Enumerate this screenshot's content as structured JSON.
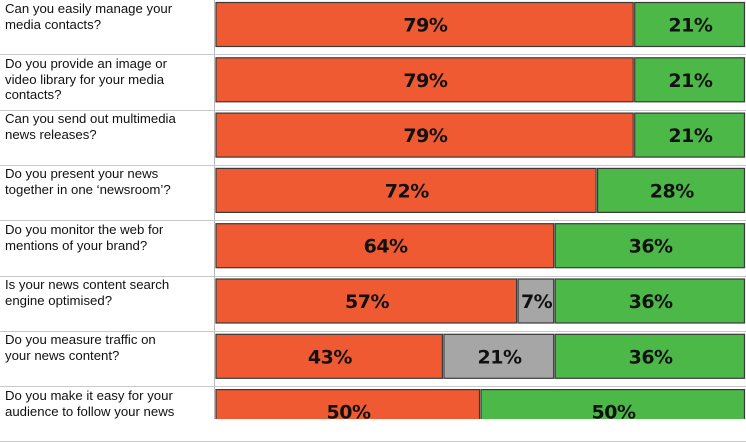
{
  "chart_data": {
    "type": "bar",
    "orientation": "horizontal",
    "stacked": true,
    "title": "",
    "xlabel": "",
    "ylabel": "",
    "xlim": [
      0,
      100
    ],
    "grid": true,
    "legend": "none",
    "categories": [
      "Can you easily manage your media contacts?",
      "Do you provide an image or video library for your media contacts?",
      "Can you send out multimedia news releases?",
      "Do you present your news together in one ‘newsroom’?",
      "Do you monitor the web for mentions of your brand?",
      "Is your news content search engine optimised?",
      "Do you measure traffic on your news content?",
      "Do you make it easy for your audience to follow your news"
    ],
    "label_lines": [
      [
        "Can you easily manage your",
        "media contacts?"
      ],
      [
        "Do you provide an image or",
        "video library for your media",
        "contacts?"
      ],
      [
        "Can you send out multimedia",
        "news releases?"
      ],
      [
        "Do you present your news",
        "together in one ‘newsroom’?"
      ],
      [
        "Do you monitor the web for",
        "mentions of your brand?"
      ],
      [
        "Is your news content search",
        "engine optimised?"
      ],
      [
        "Do you measure traffic on",
        "your news content?"
      ],
      [
        "Do you make it easy for your",
        "audience to follow your news"
      ]
    ],
    "series": [
      {
        "color": "#f05a32",
        "values": [
          79,
          79,
          79,
          72,
          64,
          57,
          43,
          50
        ],
        "labels": [
          "79%",
          "79%",
          "79%",
          "72%",
          "64%",
          "57%",
          "43%",
          "50%"
        ]
      },
      {
        "color": "#a6a6a6",
        "values": [
          0,
          0,
          0,
          0,
          0,
          7,
          21,
          0
        ],
        "labels": [
          "",
          "",
          "",
          "",
          "",
          "7%",
          "21%",
          ""
        ]
      },
      {
        "color": "#4cb848",
        "values": [
          21,
          21,
          21,
          28,
          36,
          36,
          36,
          50
        ],
        "labels": [
          "21%",
          "21%",
          "21%",
          "28%",
          "36%",
          "36%",
          "36%",
          "50%"
        ]
      }
    ]
  }
}
